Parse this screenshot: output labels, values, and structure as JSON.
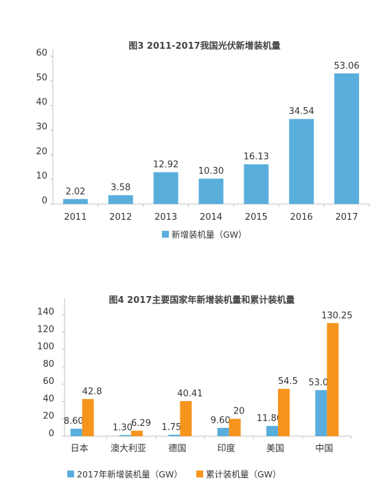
{
  "chart_data": [
    {
      "type": "bar",
      "title": "图3 2011-2017我国光伏新增装机量",
      "categories": [
        "2011",
        "2012",
        "2013",
        "2014",
        "2015",
        "2016",
        "2017"
      ],
      "series": [
        {
          "name": "新增装机量（GW）",
          "values": [
            2.02,
            3.58,
            12.92,
            10.3,
            16.13,
            34.54,
            53.06
          ],
          "labels": [
            "2.02",
            "3.58",
            "12.92",
            "10.30",
            "16.13",
            "34.54",
            "53.06"
          ],
          "color": "#5aaedc"
        }
      ],
      "yticks": [
        "0",
        "10",
        "20",
        "30",
        "40",
        "50",
        "60"
      ],
      "ylim": [
        0,
        60
      ],
      "grid": false,
      "legend": "bottom"
    },
    {
      "type": "bar",
      "title": "图4 2017主要国家年新增装机量和累计装机量",
      "categories": [
        "日本",
        "澳大利亚",
        "德国",
        "印度",
        "美国",
        "中国"
      ],
      "series": [
        {
          "name": "2017年新增装机量（GW）",
          "values": [
            8.6,
            1.3,
            1.75,
            9.6,
            11.8,
            53.0
          ],
          "labels": [
            "8.60",
            "1.30",
            "1.75",
            "9.60",
            "11.80",
            "53.0"
          ],
          "color": "#5aaedc"
        },
        {
          "name": "累计装机量（GW）",
          "values": [
            42.8,
            6.29,
            40.41,
            20,
            54.5,
            130.25
          ],
          "labels": [
            "42.8",
            "6.29",
            "40.41",
            "20",
            "54.5",
            "130.25"
          ],
          "color": "#f7941d"
        }
      ],
      "yticks": [
        "0",
        "20",
        "40",
        "60",
        "80",
        "100",
        "120",
        "140"
      ],
      "ylim": [
        0,
        140
      ],
      "grid": false,
      "legend": "bottom"
    }
  ]
}
